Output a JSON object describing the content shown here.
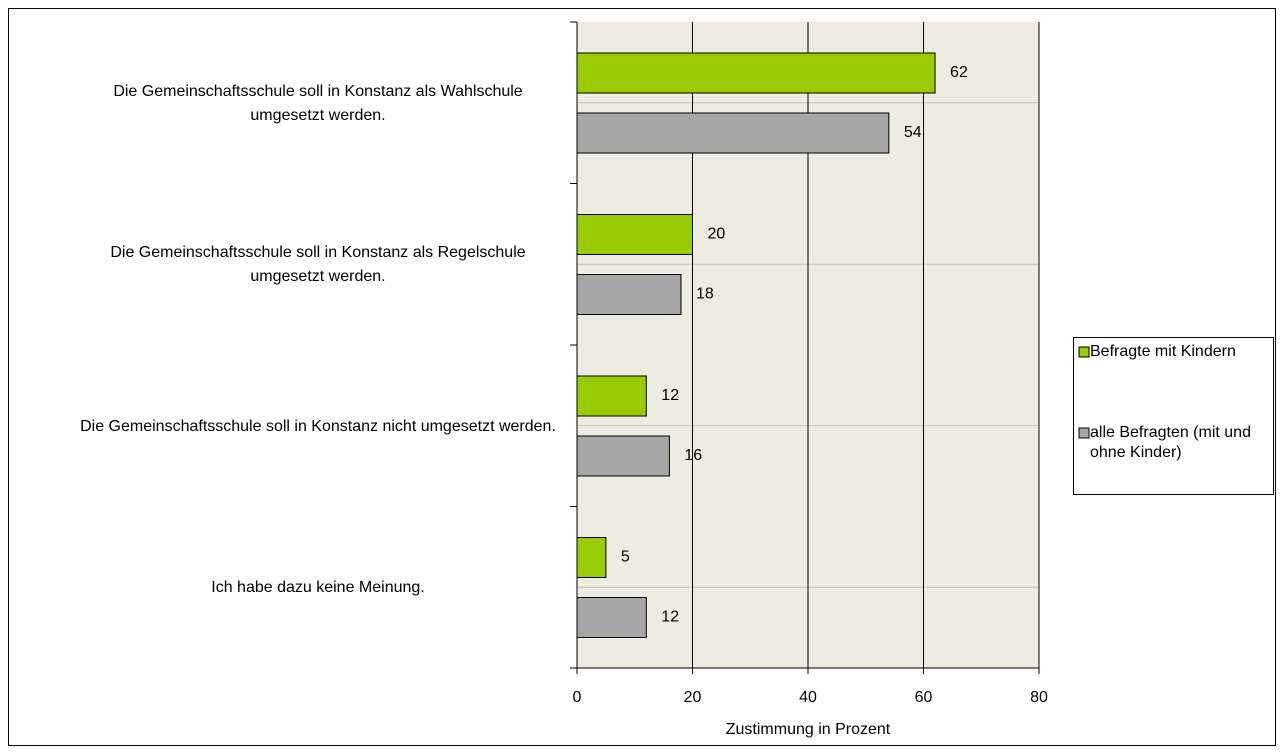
{
  "chart_data": {
    "type": "bar",
    "orientation": "horizontal",
    "categories": [
      "Die Gemeinschaftsschule soll in Konstanz als Wahlschule umgesetzt werden.",
      "Die Gemeinschaftsschule soll in Konstanz als Regelschule umgesetzt werden.",
      "Die Gemeinschaftsschule soll in Konstanz nicht umgesetzt werden.",
      "Ich habe dazu keine Meinung."
    ],
    "series": [
      {
        "name": "Befragte mit Kindern",
        "color": "#99cc00",
        "values": [
          62,
          20,
          12,
          5
        ]
      },
      {
        "name": "alle Befragten (mit und ohne Kinder)",
        "color": "#a6a6a6",
        "values": [
          54,
          18,
          16,
          12
        ]
      }
    ],
    "x_label": "Zustimmung in Prozent",
    "xlim": [
      0,
      80
    ],
    "xticks": [
      0,
      20,
      40,
      60,
      80
    ],
    "grid": true,
    "legend": "right"
  }
}
